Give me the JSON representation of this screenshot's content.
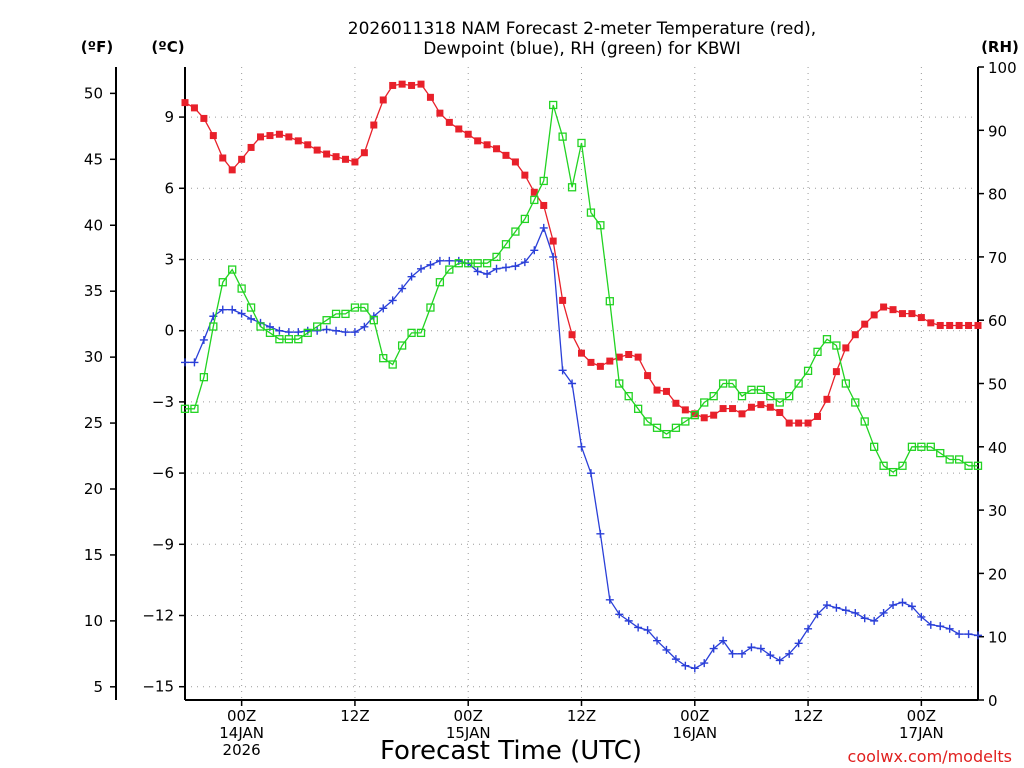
{
  "title_line1": "2026011318 NAM Forecast 2-meter Temperature (red),",
  "title_line2": "Dewpoint (blue), RH (green) for KBWI",
  "credit": "coolwx.com/modelts",
  "chart_data": {
    "type": "line",
    "title": "2026011318 NAM Forecast 2-meter Temperature (red), Dewpoint (blue), RH (green) for KBWI",
    "xlabel": "Forecast Time (UTC)",
    "x_unit": "forecast hour (from 2026-01-13 18Z)",
    "xlim": [
      0,
      84
    ],
    "x_ticks": [
      {
        "hour": 6,
        "lines": [
          "00Z",
          "14JAN",
          "2026"
        ]
      },
      {
        "hour": 18,
        "lines": [
          "12Z"
        ]
      },
      {
        "hour": 30,
        "lines": [
          "00Z",
          "15JAN"
        ]
      },
      {
        "hour": 42,
        "lines": [
          "12Z"
        ]
      },
      {
        "hour": 54,
        "lines": [
          "00Z",
          "16JAN"
        ]
      },
      {
        "hour": 66,
        "lines": [
          "12Z"
        ]
      },
      {
        "hour": 78,
        "lines": [
          "00Z",
          "17JAN"
        ]
      }
    ],
    "axes": {
      "f": {
        "label": "(ºF)",
        "range": [
          4,
          52
        ],
        "ticks": [
          5,
          10,
          15,
          20,
          25,
          30,
          35,
          40,
          45,
          50
        ]
      },
      "c": {
        "label": "(ºC)",
        "range": [
          -15.56,
          11.11
        ],
        "ticks": [
          -15,
          -12,
          -9,
          -6,
          -3,
          0,
          3,
          6,
          9
        ]
      },
      "rh": {
        "label": "(RH)",
        "range": [
          0,
          100
        ],
        "ticks": [
          0,
          10,
          20,
          30,
          40,
          50,
          60,
          70,
          80,
          90,
          100
        ]
      }
    },
    "grid": true,
    "series": [
      {
        "name": "2-meter Temperature",
        "units": "F",
        "color": "#e8202a",
        "marker": "filled-square",
        "x": [
          0,
          1,
          2,
          3,
          4,
          5,
          6,
          7,
          8,
          9,
          10,
          11,
          12,
          13,
          14,
          15,
          16,
          17,
          18,
          19,
          20,
          21,
          22,
          23,
          24,
          25,
          26,
          27,
          28,
          29,
          30,
          31,
          32,
          33,
          34,
          35,
          36,
          37,
          38,
          39,
          40,
          41,
          42,
          43,
          44,
          45,
          46,
          47,
          48,
          49,
          50,
          51,
          52,
          53,
          54,
          55,
          56,
          57,
          58,
          59,
          60,
          61,
          62,
          63,
          64,
          65,
          66,
          67,
          68,
          69,
          70,
          71,
          72,
          73,
          74,
          75,
          76,
          77,
          78,
          79,
          80,
          81,
          82,
          83,
          84
        ],
        "values": [
          49.3,
          48.9,
          48.1,
          46.8,
          45.1,
          44.2,
          45.0,
          45.9,
          46.7,
          46.8,
          46.9,
          46.7,
          46.4,
          46.1,
          45.7,
          45.4,
          45.2,
          45.0,
          44.8,
          45.5,
          47.6,
          49.5,
          50.6,
          50.7,
          50.6,
          50.7,
          49.7,
          48.5,
          47.8,
          47.3,
          46.9,
          46.4,
          46.1,
          45.8,
          45.3,
          44.8,
          43.8,
          42.5,
          41.5,
          38.8,
          34.3,
          31.7,
          30.3,
          29.6,
          29.3,
          29.7,
          30.0,
          30.2,
          30.0,
          28.6,
          27.5,
          27.4,
          26.5,
          26.0,
          25.7,
          25.4,
          25.6,
          26.1,
          26.1,
          25.7,
          26.2,
          26.4,
          26.2,
          25.8,
          25.0,
          25.0,
          25.0,
          25.5,
          26.8,
          28.9,
          30.7,
          31.7,
          32.5,
          33.2,
          33.8,
          33.6,
          33.3,
          33.3,
          33.0,
          32.6,
          32.4,
          32.4,
          32.4,
          32.4,
          32.4
        ]
      },
      {
        "name": "Dewpoint",
        "units": "F",
        "color": "#2a3fd8",
        "marker": "plus",
        "x": [
          0,
          1,
          2,
          3,
          4,
          5,
          6,
          7,
          8,
          9,
          10,
          11,
          12,
          13,
          14,
          15,
          16,
          17,
          18,
          19,
          20,
          21,
          22,
          23,
          24,
          25,
          26,
          27,
          28,
          29,
          30,
          31,
          32,
          33,
          34,
          35,
          36,
          37,
          38,
          39,
          40,
          41,
          42,
          43,
          44,
          45,
          46,
          47,
          48,
          49,
          50,
          51,
          52,
          53,
          54,
          55,
          56,
          57,
          58,
          59,
          60,
          61,
          62,
          63,
          64,
          65,
          66,
          67,
          68,
          69,
          70,
          71,
          72,
          73,
          74,
          75,
          76,
          77,
          78,
          79,
          80,
          81,
          82,
          83,
          84
        ],
        "values": [
          29.6,
          29.6,
          31.3,
          33.1,
          33.6,
          33.6,
          33.3,
          32.9,
          32.6,
          32.3,
          32.0,
          31.9,
          31.9,
          32.0,
          32.0,
          32.1,
          32.0,
          31.9,
          31.9,
          32.3,
          33.1,
          33.7,
          34.3,
          35.2,
          36.1,
          36.7,
          37.0,
          37.3,
          37.3,
          37.3,
          37.1,
          36.5,
          36.3,
          36.7,
          36.8,
          36.9,
          37.2,
          38.1,
          39.8,
          37.6,
          29.0,
          28.0,
          23.2,
          21.2,
          16.6,
          11.6,
          10.5,
          10.0,
          9.5,
          9.3,
          8.5,
          7.8,
          7.1,
          6.6,
          6.4,
          6.8,
          7.9,
          8.5,
          7.5,
          7.5,
          8.0,
          7.9,
          7.4,
          7.0,
          7.5,
          8.3,
          9.4,
          10.5,
          11.2,
          11.0,
          10.8,
          10.6,
          10.2,
          10.0,
          10.6,
          11.2,
          11.4,
          11.1,
          10.3,
          9.7,
          9.6,
          9.4,
          9.0,
          9.0,
          8.9
        ]
      },
      {
        "name": "RH",
        "units": "%",
        "color": "#22d322",
        "marker": "open-square",
        "x": [
          0,
          1,
          2,
          3,
          4,
          5,
          6,
          7,
          8,
          9,
          10,
          11,
          12,
          13,
          14,
          15,
          16,
          17,
          18,
          19,
          20,
          21,
          22,
          23,
          24,
          25,
          26,
          27,
          28,
          29,
          30,
          31,
          32,
          33,
          34,
          35,
          36,
          37,
          38,
          39,
          40,
          41,
          42,
          43,
          44,
          45,
          46,
          47,
          48,
          49,
          50,
          51,
          52,
          53,
          54,
          55,
          56,
          57,
          58,
          59,
          60,
          61,
          62,
          63,
          64,
          65,
          66,
          67,
          68,
          69,
          70,
          71,
          72,
          73,
          74,
          75,
          76,
          77,
          78,
          79,
          80,
          81,
          82,
          83,
          84
        ],
        "values": [
          46,
          46,
          51,
          59,
          66,
          68,
          65,
          62,
          59,
          58,
          57,
          57,
          57,
          58,
          59,
          60,
          61,
          61,
          62,
          62,
          60,
          54,
          53,
          56,
          58,
          58,
          62,
          66,
          68,
          69,
          69,
          69,
          69,
          70,
          72,
          74,
          76,
          79,
          82,
          94,
          89,
          81,
          88,
          77,
          75,
          63,
          50,
          48,
          46,
          44,
          43,
          42,
          43,
          44,
          45,
          47,
          48,
          50,
          50,
          48,
          49,
          49,
          48,
          47,
          48,
          50,
          52,
          55,
          57,
          56,
          50,
          47,
          44,
          40,
          37,
          36,
          37,
          40,
          40,
          40,
          39,
          38,
          38,
          37,
          37
        ]
      }
    ]
  }
}
